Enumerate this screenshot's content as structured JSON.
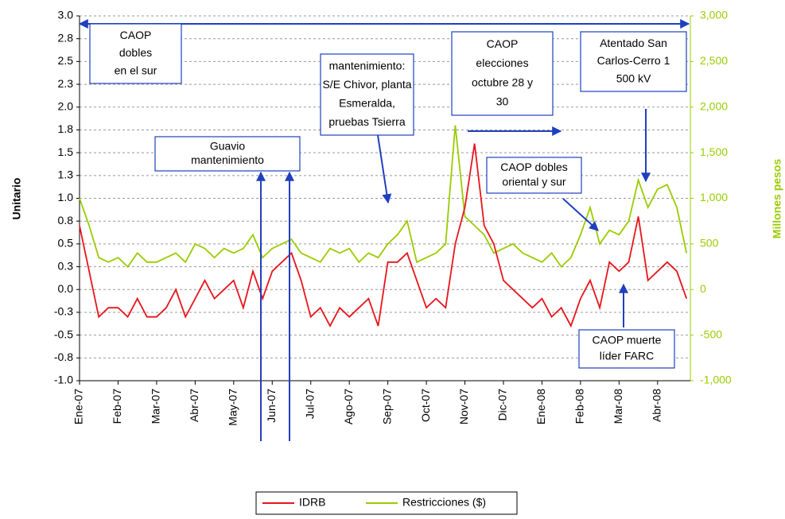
{
  "chart_data": {
    "type": "line",
    "y_label": "Unitario",
    "y2_label": "Millones pesos",
    "categories": [
      "Ene-07",
      null,
      null,
      null,
      "Feb-07",
      null,
      null,
      null,
      "Mar-07",
      null,
      null,
      null,
      "Abr-07",
      null,
      null,
      null,
      "May-07",
      null,
      null,
      null,
      "Jun-07",
      null,
      null,
      null,
      "Jul-07",
      null,
      null,
      null,
      "Ago-07",
      null,
      null,
      null,
      "Sep-07",
      null,
      null,
      null,
      "Oct-07",
      null,
      null,
      null,
      "Nov-07",
      null,
      null,
      null,
      "Dic-07",
      null,
      null,
      null,
      "Ene-08",
      null,
      null,
      null,
      "Feb-08",
      null,
      null,
      null,
      "Mar-08",
      null,
      null,
      null,
      "Abr-08",
      null,
      null,
      null
    ],
    "series": [
      {
        "name": "IDRB",
        "color": "#e8141b",
        "values": [
          0.7,
          0.2,
          -0.3,
          -0.2,
          -0.2,
          -0.3,
          -0.1,
          -0.3,
          -0.3,
          -0.2,
          0.0,
          -0.3,
          -0.1,
          0.1,
          -0.1,
          0.0,
          0.1,
          -0.2,
          0.2,
          -0.1,
          0.2,
          0.3,
          0.4,
          0.1,
          -0.3,
          -0.2,
          -0.4,
          -0.2,
          -0.3,
          -0.2,
          -0.1,
          -0.4,
          0.3,
          0.3,
          0.4,
          0.1,
          -0.2,
          -0.1,
          -0.2,
          0.5,
          0.9,
          1.6,
          0.7,
          0.5,
          0.1,
          0.0,
          -0.1,
          -0.2,
          -0.1,
          -0.3,
          -0.2,
          -0.4,
          -0.1,
          0.1,
          -0.2,
          0.3,
          0.2,
          0.3,
          0.8,
          0.1,
          0.2,
          0.3,
          0.2,
          -0.1
        ]
      },
      {
        "name": "Restricciones ($)",
        "color": "#99cc00",
        "axis": "y2",
        "values": [
          1000,
          700,
          350,
          300,
          350,
          250,
          400,
          300,
          300,
          350,
          400,
          300,
          500,
          450,
          350,
          450,
          400,
          450,
          600,
          350,
          450,
          500,
          550,
          400,
          350,
          300,
          450,
          400,
          450,
          300,
          400,
          350,
          500,
          600,
          750,
          300,
          350,
          400,
          500,
          1800,
          800,
          700,
          600,
          400,
          450,
          500,
          400,
          350,
          300,
          400,
          250,
          350,
          600,
          900,
          500,
          650,
          600,
          750,
          1200,
          900,
          1100,
          1150,
          900,
          400
        ]
      }
    ],
    "ylim": [
      -1,
      3
    ],
    "yticks": [
      {
        "value": -1,
        "label": "-1.0"
      },
      {
        "value": -0.75,
        "label": "-0.8"
      },
      {
        "value": -0.5,
        "label": "-0.5"
      },
      {
        "value": -0.25,
        "label": "-0.3"
      },
      {
        "value": 0,
        "label": "0.0"
      },
      {
        "value": 0.25,
        "label": "0.3"
      },
      {
        "value": 0.5,
        "label": "0.5"
      },
      {
        "value": 0.75,
        "label": "0.8"
      },
      {
        "value": 1,
        "label": "1.0"
      },
      {
        "value": 1.25,
        "label": "1.3"
      },
      {
        "value": 1.5,
        "label": "1.5"
      },
      {
        "value": 1.75,
        "label": "1.8"
      },
      {
        "value": 2,
        "label": "2.0"
      },
      {
        "value": 2.25,
        "label": "2.3"
      },
      {
        "value": 2.5,
        "label": "2.5"
      },
      {
        "value": 2.75,
        "label": "2.8"
      },
      {
        "value": 3,
        "label": "3.0"
      }
    ],
    "y2lim": [
      -1000,
      3000
    ],
    "y2ticks": [
      {
        "value": -1000,
        "label": "-1,000"
      },
      -500,
      0,
      500,
      {
        "value": 1000,
        "label": "1,000"
      },
      {
        "value": 1500,
        "label": "1,500"
      },
      {
        "value": 2000,
        "label": "2,000"
      },
      {
        "value": 2500,
        "label": "2,500"
      },
      {
        "value": 3000,
        "label": "3,000"
      }
    ],
    "grid": true,
    "legend": "bottom",
    "annotations": [
      {
        "lines": [
          "CAOP",
          "dobles",
          "en el sur"
        ]
      },
      {
        "lines": [
          "Guavio",
          "mantenimiento"
        ]
      },
      {
        "lines": [
          "mantenimiento:",
          "S/E Chivor, planta",
          "Esmeralda,",
          "pruebas Tsierra"
        ]
      },
      {
        "lines": [
          "CAOP",
          "elecciones",
          "octubre 28 y",
          "30"
        ]
      },
      {
        "lines": [
          "Atentado San",
          "Carlos-Cerro 1",
          "500 kV"
        ]
      },
      {
        "lines": [
          "CAOP dobles",
          "oriental y sur"
        ]
      },
      {
        "lines": [
          "CAOP muerte",
          "líder FARC"
        ]
      }
    ]
  }
}
